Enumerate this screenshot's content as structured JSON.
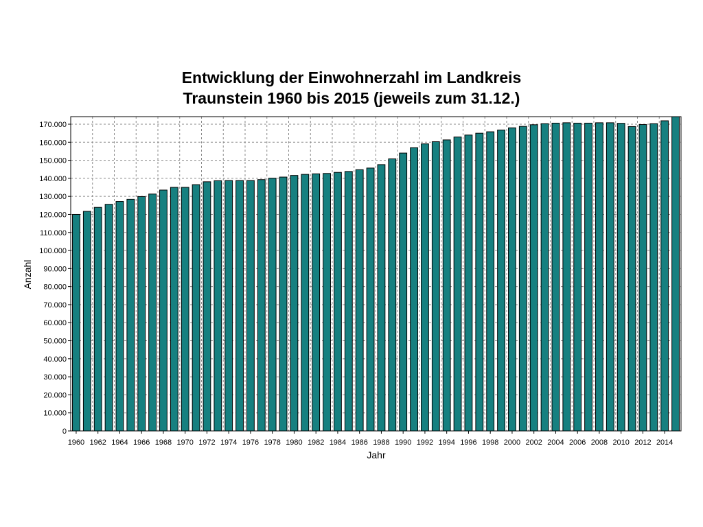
{
  "chart_data": {
    "type": "bar",
    "title_line1": "Entwicklung der Einwohnerzahl im Landkreis",
    "title_line2": "Traunstein 1960 bis 2015 (jeweils zum 31.12.)",
    "xlabel": "Jahr",
    "ylabel": "Anzahl",
    "ylim": [
      0,
      170000
    ],
    "y_ticks": [
      "0",
      "10.000",
      "20.000",
      "30.000",
      "40.000",
      "50.000",
      "60.000",
      "70.000",
      "80.000",
      "90.000",
      "100.000",
      "110.000",
      "120.000",
      "130.000",
      "140.000",
      "150.000",
      "160.000",
      "170.000"
    ],
    "x_tick_labels": [
      "1960",
      "1962",
      "1964",
      "1966",
      "1968",
      "1970",
      "1972",
      "1974",
      "1976",
      "1978",
      "1980",
      "1982",
      "1984",
      "1986",
      "1988",
      "1990",
      "1992",
      "1994",
      "1996",
      "1998",
      "2000",
      "2002",
      "2004",
      "2006",
      "2008",
      "2010",
      "2012",
      "2014"
    ],
    "grid": true,
    "bar_color": "#168080",
    "categories": [
      "1960",
      "1961",
      "1962",
      "1963",
      "1964",
      "1965",
      "1966",
      "1967",
      "1968",
      "1969",
      "1970",
      "1971",
      "1972",
      "1973",
      "1974",
      "1975",
      "1976",
      "1977",
      "1978",
      "1979",
      "1980",
      "1981",
      "1982",
      "1983",
      "1984",
      "1985",
      "1986",
      "1987",
      "1988",
      "1989",
      "1990",
      "1991",
      "1992",
      "1993",
      "1994",
      "1995",
      "1996",
      "1997",
      "1998",
      "1999",
      "2000",
      "2001",
      "2002",
      "2003",
      "2004",
      "2005",
      "2006",
      "2007",
      "2008",
      "2009",
      "2010",
      "2011",
      "2012",
      "2013",
      "2014",
      "2015"
    ],
    "values": [
      120000,
      121700,
      123900,
      125600,
      127200,
      128400,
      129900,
      131300,
      133500,
      135000,
      135000,
      136500,
      138100,
      138700,
      138800,
      138800,
      138800,
      139300,
      140100,
      140700,
      141600,
      142200,
      142500,
      142700,
      143300,
      143800,
      144800,
      145700,
      147600,
      150800,
      154000,
      157000,
      159100,
      160300,
      161300,
      162900,
      164000,
      165000,
      165800,
      166800,
      168000,
      168800,
      169700,
      170300,
      170600,
      170800,
      170600,
      170600,
      170800,
      170800,
      170500,
      168700,
      169800,
      170300,
      171900,
      174800
    ]
  }
}
